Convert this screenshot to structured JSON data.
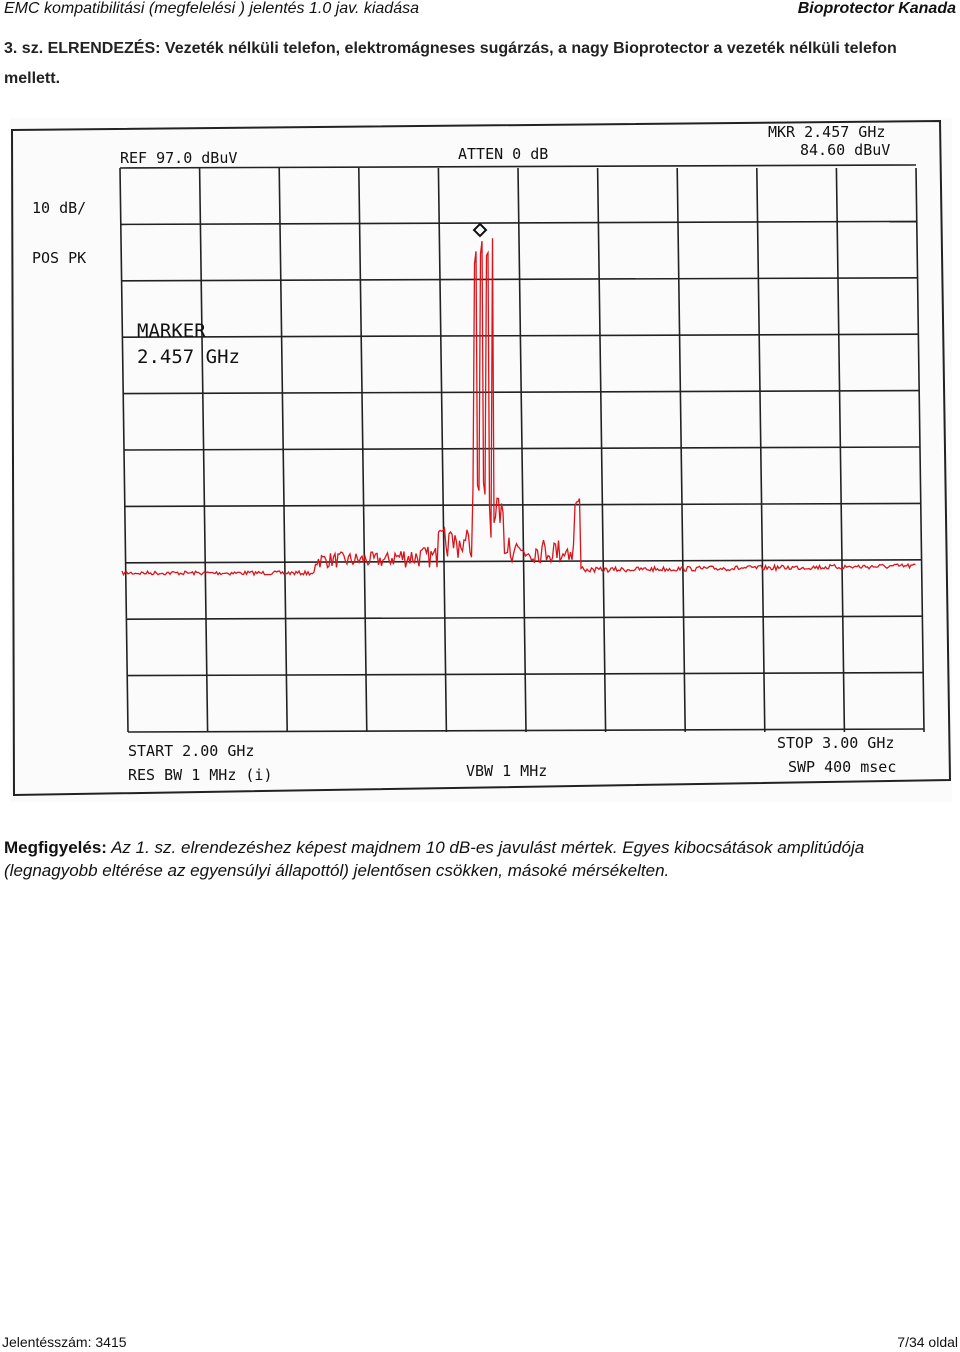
{
  "header": {
    "left": "EMC kompatibilitási (megfelelési ) jelentés 1.0 jav. kiadása",
    "right": "Bioprotector Kanada"
  },
  "title": "3. sz. ELRENDEZÉS: Vezeték nélküli telefon, elektromágneses sugárzás, a nagy Bioprotector a vezeték nélküli telefon mellett.",
  "analyzer": {
    "ref": "REF  97.0 dBuV",
    "atten": "ATTEN 0 dB",
    "mkr_freq": "MKR 2.457 GHz",
    "mkr_level": "84.60 dBuV",
    "scale": "10 dB/",
    "detector": "POS PK",
    "marker_title": "MARKER",
    "marker_freq": "2.457 GHz",
    "start": "START 2.00 GHz",
    "res_bw": "RES BW 1 MHz (i)",
    "vbw": "VBW 1 MHz",
    "stop": "STOP 3.00 GHz",
    "swp": "SWP 400 msec",
    "trace_color": "#d8151b"
  },
  "observation": {
    "label": "Megfigyelés:",
    "text": "Az 1. sz. elrendezéshez képest majdnem 10 dB-es javulást mértek. Egyes kibocsátások amplitúdója (legnagyobb eltérése az egyensúlyi állapottól) jelentősen csökken, másoké mérsékelten."
  },
  "footer": {
    "left": "Jelentésszám: 3415",
    "right": "7/34 oldal"
  }
}
